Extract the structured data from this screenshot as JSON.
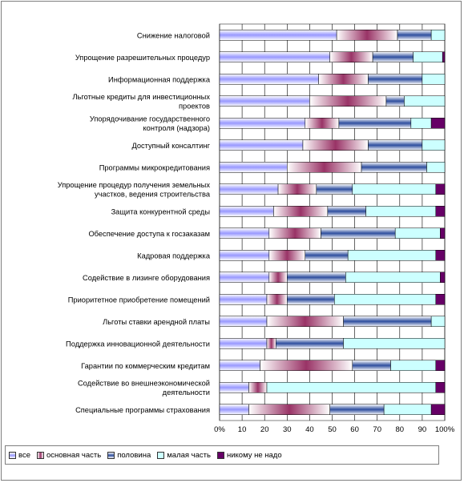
{
  "chart_data": {
    "type": "bar",
    "orientation": "horizontal",
    "stacked": "percent",
    "categories": [
      "Снижение налоговой",
      "Упрощение разрешительных процедур",
      "Информационная поддержка",
      "Льготные кредиты для инвестиционных\nпроектов",
      "Упорядочивание государственного\nконтроля (надзора)",
      "Доступный консалтинг",
      "Программы микрокредитования",
      "Упрощение процедур получения земельных\nучастков, ведения строительства",
      "Защита конкурентной среды",
      "Обеспечение доступа к госзаказам",
      "Кадровая поддержка",
      "Содействие в лизинге оборудования",
      "Приоритетное приобретение помещений",
      "Льготы ставки арендной платы",
      "Поддержка инновационной деятельности",
      "Гарантии по коммерческим кредитам",
      "Содействие во внешнеэкономической\nдеятельности",
      "Специальные программы страхования"
    ],
    "series": [
      {
        "name": "все",
        "color": "#9999ff",
        "values": [
          52,
          49,
          44,
          40,
          38,
          37,
          30,
          26,
          24,
          22,
          22,
          22,
          21,
          21,
          21,
          18,
          13,
          13
        ]
      },
      {
        "name": "основная часть",
        "color": "#993366",
        "values": [
          27,
          19,
          22,
          34,
          15,
          29,
          33,
          17,
          24,
          23,
          16,
          8,
          9,
          34,
          4,
          41,
          8,
          36
        ]
      },
      {
        "name": "половина",
        "color": "#2f4f9f",
        "values": [
          15,
          18,
          24,
          8,
          32,
          24,
          29,
          16,
          17,
          33,
          19,
          26,
          21,
          39,
          30,
          17,
          0,
          24
        ]
      },
      {
        "name": "малая часть",
        "color": "#ccffff",
        "values": [
          6,
          13,
          10,
          18,
          9,
          10,
          8,
          37,
          31,
          20,
          39,
          42,
          45,
          6,
          45,
          20,
          75,
          21
        ]
      },
      {
        "name": "никому не надо",
        "color": "#660066",
        "values": [
          0,
          1,
          0,
          0,
          6,
          0,
          0,
          4,
          4,
          2,
          4,
          2,
          4,
          0,
          0,
          4,
          4,
          6
        ]
      }
    ],
    "x_ticks": [
      "0%",
      "10",
      "20",
      "30",
      "40",
      "50",
      "60",
      "70",
      "80",
      "90",
      "100%"
    ],
    "xlim": [
      0,
      100
    ],
    "grid": true,
    "legend_position": "bottom"
  }
}
